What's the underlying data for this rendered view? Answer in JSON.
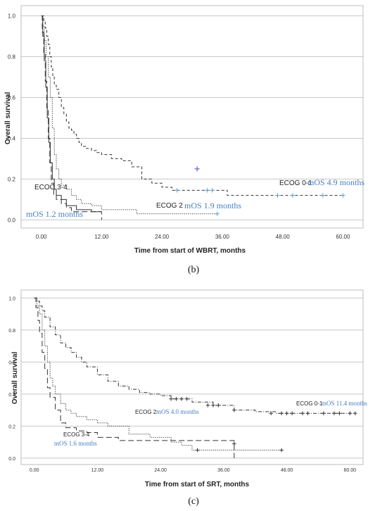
{
  "chart_data": [
    {
      "type": "line",
      "panel_label": "(b)",
      "xlabel": "Time from start of WBRT, months",
      "ylabel": "Overall survival",
      "xlim": [
        -4,
        64
      ],
      "ylim": [
        -0.04,
        1.05
      ],
      "xticks": [
        0,
        12,
        24,
        36,
        48,
        60
      ],
      "xtick_labels": [
        "0.00",
        "12.00",
        "24.00",
        "36.00",
        "48.00",
        "60.00"
      ],
      "yticks": [
        0,
        0.2,
        0.4,
        0.6,
        0.8,
        1.0
      ],
      "ytick_labels": [
        "0.0",
        "0.2",
        "0.4",
        "0.6",
        "0.8",
        "1.0"
      ],
      "grid": "horizontal",
      "series": [
        {
          "name": "ECOG 0-1",
          "style": "dashed",
          "x": [
            0,
            0.5,
            0.8,
            1.1,
            1.4,
            1.7,
            2.0,
            2.3,
            2.6,
            3.0,
            3.5,
            4.0,
            4.5,
            5.0,
            5.5,
            6.0,
            6.5,
            7.0,
            7.5,
            8.0,
            9.0,
            10.0,
            11.0,
            12.0,
            14.0,
            16.0,
            18.0,
            20.0,
            22.0,
            24.0,
            26.0,
            37.0,
            60.0
          ],
          "y": [
            1.0,
            0.97,
            0.94,
            0.9,
            0.86,
            0.8,
            0.75,
            0.7,
            0.66,
            0.64,
            0.6,
            0.55,
            0.52,
            0.48,
            0.45,
            0.44,
            0.42,
            0.4,
            0.38,
            0.36,
            0.35,
            0.34,
            0.33,
            0.32,
            0.3,
            0.29,
            0.26,
            0.2,
            0.18,
            0.16,
            0.145,
            0.12,
            0.12
          ],
          "censor_x": [
            27,
            33,
            34,
            47,
            50,
            56,
            60
          ],
          "censor_y": [
            0.145,
            0.145,
            0.145,
            0.12,
            0.12,
            0.12,
            0.12
          ],
          "annotation": "mOS 4.9 months"
        },
        {
          "name": "ECOG 2",
          "style": "dotted",
          "x": [
            0,
            0.3,
            0.6,
            1.0,
            1.4,
            1.8,
            2.2,
            2.6,
            3.0,
            3.5,
            4.0,
            5.0,
            6.0,
            7.0,
            8.0,
            10.0,
            12.0,
            19.0,
            35.0
          ],
          "y": [
            1.0,
            0.95,
            0.88,
            0.8,
            0.7,
            0.6,
            0.45,
            0.32,
            0.25,
            0.2,
            0.17,
            0.15,
            0.12,
            0.1,
            0.08,
            0.07,
            0.05,
            0.03,
            0.03
          ],
          "censor_x": [
            35
          ],
          "censor_y": [
            0.03
          ],
          "annotation": "mOS 1.9 months"
        },
        {
          "name": "ECOG 3-4",
          "style": "longdash",
          "x": [
            0,
            0.2,
            0.5,
            0.8,
            1.1,
            1.4,
            1.7,
            2.0,
            2.5,
            3.0,
            4.0,
            5.0,
            6.0,
            7.0,
            12.0,
            12.0
          ],
          "y": [
            1.0,
            0.92,
            0.82,
            0.68,
            0.55,
            0.4,
            0.28,
            0.18,
            0.12,
            0.1,
            0.08,
            0.06,
            0.04,
            0.04,
            0.04,
            0.0
          ],
          "censor_x": [],
          "censor_y": [],
          "annotation": "mOS 1.2 months"
        },
        {
          "name": "",
          "style": "solid",
          "x": [
            0,
            0.3,
            0.6,
            0.9,
            1.2,
            1.5,
            1.8,
            2.2,
            2.6,
            3.0,
            4.0,
            5.0,
            7.0,
            10.0,
            12.0
          ],
          "y": [
            1.0,
            0.9,
            0.78,
            0.65,
            0.5,
            0.38,
            0.28,
            0.2,
            0.15,
            0.12,
            0.1,
            0.07,
            0.05,
            0.04,
            0.04
          ],
          "censor_x": [],
          "censor_y": [],
          "annotation": ""
        }
      ],
      "extra_censor": {
        "x": 31,
        "y": 0.25
      }
    },
    {
      "type": "line",
      "panel_label": "(c)",
      "xlabel": "Time from start of SRT, months",
      "ylabel": "Overall survival",
      "xlim": [
        -2.5,
        62.5
      ],
      "ylim": [
        -0.04,
        1.05
      ],
      "xticks": [
        0,
        12,
        24,
        36,
        48,
        60
      ],
      "xtick_labels": [
        "0.00",
        "12.00",
        "24.00",
        "36.00",
        "48.00",
        "60.00"
      ],
      "yticks": [
        0,
        0.2,
        0.4,
        0.6,
        0.8,
        1.0
      ],
      "ytick_labels": [
        "0.0",
        "0.2",
        "0.4",
        "0.6",
        "0.8",
        "1.0"
      ],
      "grid": "horizontal",
      "series": [
        {
          "name": "ECOG 0-1",
          "style": "dashdot",
          "x": [
            0,
            0.5,
            1,
            1.5,
            2,
            3,
            4,
            5,
            6,
            7,
            8,
            9,
            10,
            12,
            14,
            16,
            18,
            20,
            22,
            24,
            26,
            30,
            34,
            38,
            42,
            46,
            50,
            55,
            61
          ],
          "y": [
            1.0,
            0.98,
            0.95,
            0.92,
            0.88,
            0.82,
            0.77,
            0.72,
            0.69,
            0.66,
            0.63,
            0.6,
            0.57,
            0.52,
            0.48,
            0.45,
            0.43,
            0.41,
            0.4,
            0.39,
            0.37,
            0.35,
            0.33,
            0.3,
            0.29,
            0.28,
            0.28,
            0.28,
            0.28
          ],
          "censor_x": [
            26,
            27,
            28,
            29,
            33,
            34,
            35,
            38,
            45,
            47,
            48,
            49,
            51,
            52,
            55,
            57,
            58,
            60,
            61
          ],
          "censor_y": [
            0.37,
            0.37,
            0.37,
            0.37,
            0.33,
            0.33,
            0.33,
            0.3,
            0.28,
            0.28,
            0.28,
            0.28,
            0.28,
            0.28,
            0.28,
            0.28,
            0.28,
            0.28,
            0.28
          ],
          "annotation": "mOS 11.4 months"
        },
        {
          "name": "ECOG 2",
          "style": "dotted",
          "x": [
            0,
            0.5,
            1,
            1.5,
            2,
            2.5,
            3,
            3.5,
            4,
            5,
            6,
            7,
            8,
            10,
            12,
            14,
            18,
            22,
            26,
            28,
            30,
            47
          ],
          "y": [
            1.0,
            0.95,
            0.9,
            0.8,
            0.7,
            0.6,
            0.5,
            0.45,
            0.4,
            0.34,
            0.3,
            0.28,
            0.26,
            0.24,
            0.22,
            0.2,
            0.15,
            0.13,
            0.1,
            0.08,
            0.05,
            0.05
          ],
          "censor_x": [
            31,
            47
          ],
          "censor_y": [
            0.05,
            0.05
          ],
          "annotation": "mOS 4.0 months"
        },
        {
          "name": "ECOG 3-4",
          "style": "longdash",
          "x": [
            0,
            0.3,
            0.7,
            1,
            1.5,
            2,
            2.5,
            3,
            4,
            5,
            6,
            8,
            10,
            12,
            16,
            20,
            25,
            30,
            35,
            38,
            38
          ],
          "y": [
            1.0,
            0.94,
            0.86,
            0.78,
            0.66,
            0.56,
            0.44,
            0.38,
            0.3,
            0.22,
            0.19,
            0.17,
            0.16,
            0.13,
            0.11,
            0.11,
            0.11,
            0.11,
            0.11,
            0.11,
            0.0
          ],
          "censor_x": [
            38
          ],
          "censor_y": [
            0.09
          ],
          "annotation": "mOS 1.6 months"
        }
      ]
    }
  ]
}
